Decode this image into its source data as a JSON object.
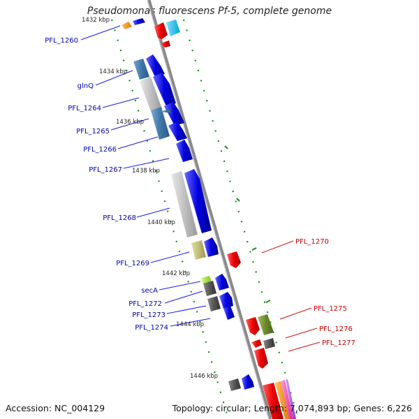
{
  "title": "Pseudomonas fluorescens Pf-5, complete genome",
  "footer": {
    "accession": "Accession: NC_004129",
    "summary": "Topology: circular; Length: 7,074,893 bp; Genes: 6,226"
  },
  "colors": {
    "backbone": "#8a8a8a",
    "cds": "#1010ee",
    "left_label": "#0000b0",
    "right_label": "#cc0000",
    "grid": "#1a8a1a"
  },
  "ticks": [
    "1432 kbp",
    "1434 kbp",
    "1436 kbp",
    "1438 kbp",
    "1440 kbp",
    "1442 kbp",
    "1444 kbp",
    "1446 kbp"
  ],
  "left_labels": [
    "PFL_1260",
    "glnQ",
    "PFL_1264",
    "PFL_1265",
    "PFL_1266",
    "PFL_1267",
    "PFL_1268",
    "PFL_1269",
    "secA",
    "PFL_1272",
    "PFL_1273",
    "PFL_1274"
  ],
  "right_labels": [
    "PFL_1270",
    "PFL_1275",
    "PFL_1276",
    "PFL_1277"
  ]
}
